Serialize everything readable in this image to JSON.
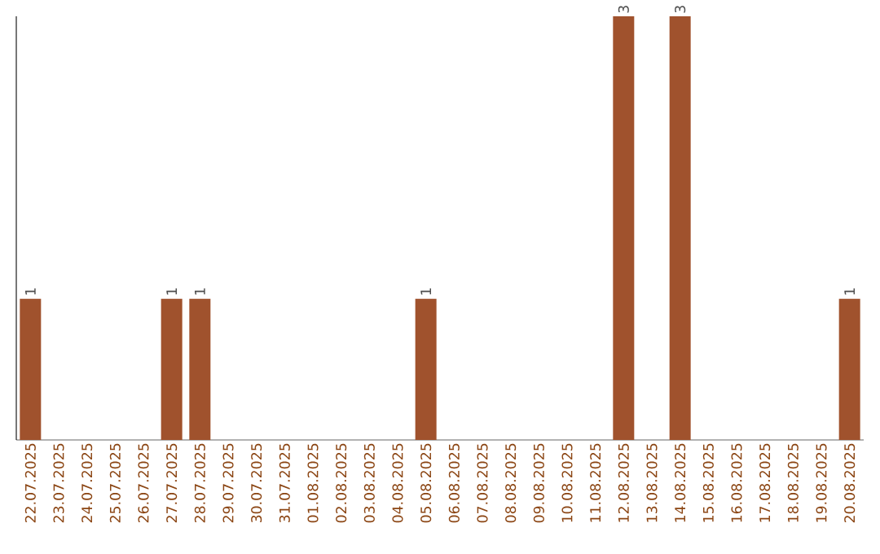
{
  "chart_data": {
    "type": "bar",
    "categories": [
      "22.07.2025",
      "23.07.2025",
      "24.07.2025",
      "25.07.2025",
      "26.07.2025",
      "27.07.2025",
      "28.07.2025",
      "29.07.2025",
      "30.07.2025",
      "31.07.2025",
      "01.08.2025",
      "02.08.2025",
      "03.08.2025",
      "04.08.2025",
      "05.08.2025",
      "06.08.2025",
      "07.08.2025",
      "08.08.2025",
      "09.08.2025",
      "10.08.2025",
      "11.08.2025",
      "12.08.2025",
      "13.08.2025",
      "14.08.2025",
      "15.08.2025",
      "16.08.2025",
      "17.08.2025",
      "18.08.2025",
      "19.08.2025",
      "20.08.2025"
    ],
    "values": [
      1,
      0,
      0,
      0,
      0,
      1,
      1,
      0,
      0,
      0,
      0,
      0,
      0,
      0,
      1,
      0,
      0,
      0,
      0,
      0,
      0,
      3,
      0,
      3,
      0,
      0,
      0,
      0,
      0,
      1
    ],
    "value_labels": [
      "1",
      null,
      null,
      null,
      null,
      "1",
      "1",
      null,
      null,
      null,
      null,
      null,
      null,
      null,
      "1",
      null,
      null,
      null,
      null,
      null,
      null,
      "3",
      null,
      "3",
      null,
      null,
      null,
      null,
      null,
      "1"
    ],
    "color": "#a0522d",
    "tick_labels": "x"
  }
}
